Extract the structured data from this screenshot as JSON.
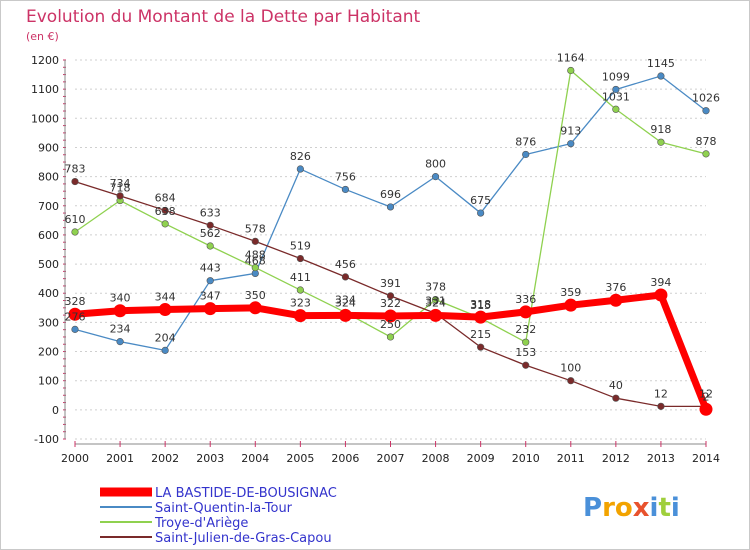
{
  "chart_data": {
    "type": "line",
    "title": "Evolution du Montant de la Dette par Habitant",
    "subtitle": "(en €)",
    "xlabel": "",
    "ylabel": "",
    "ylim": [
      -100,
      1200
    ],
    "yticks": [
      -100,
      0,
      100,
      200,
      300,
      400,
      500,
      600,
      700,
      800,
      900,
      1000,
      1100,
      1200
    ],
    "x": [
      2000,
      2001,
      2002,
      2003,
      2004,
      2005,
      2006,
      2007,
      2008,
      2009,
      2010,
      2011,
      2012,
      2013,
      2014
    ],
    "grid": "horizontal dotted",
    "legend_position": "bottom-left",
    "series": [
      {
        "name": "LA BASTIDE-DE-BOUSIGNAC",
        "color": "#ff0000",
        "values": [
          328,
          340,
          344,
          347,
          350,
          323,
          324,
          322,
          324,
          318,
          336,
          359,
          376,
          394,
          2
        ]
      },
      {
        "name": "Saint-Quentin-la-Tour",
        "color": "#4a8ac4",
        "values": [
          276,
          234,
          204,
          443,
          468,
          826,
          756,
          696,
          800,
          675,
          876,
          913,
          1099,
          1145,
          1026
        ]
      },
      {
        "name": "Troye-d'Ariège",
        "color": "#8fd14f",
        "values": [
          610,
          718,
          638,
          562,
          488,
          411,
          334,
          250,
          378,
          315,
          232,
          1164,
          1031,
          918,
          878
        ]
      },
      {
        "name": "Saint-Julien-de-Gras-Capou",
        "color": "#7a2a2a",
        "values": [
          783,
          734,
          684,
          633,
          578,
          519,
          456,
          391,
          331,
          215,
          153,
          100,
          40,
          12,
          12
        ]
      }
    ]
  },
  "brand": {
    "letters": [
      "P",
      "r",
      "o",
      "x",
      "i",
      "t",
      "i"
    ],
    "colors": [
      "#4a90d9",
      "#f2a300",
      "#f2a300",
      "#e8522d",
      "#4a90d9",
      "#9fcf3c",
      "#4a90d9"
    ]
  }
}
